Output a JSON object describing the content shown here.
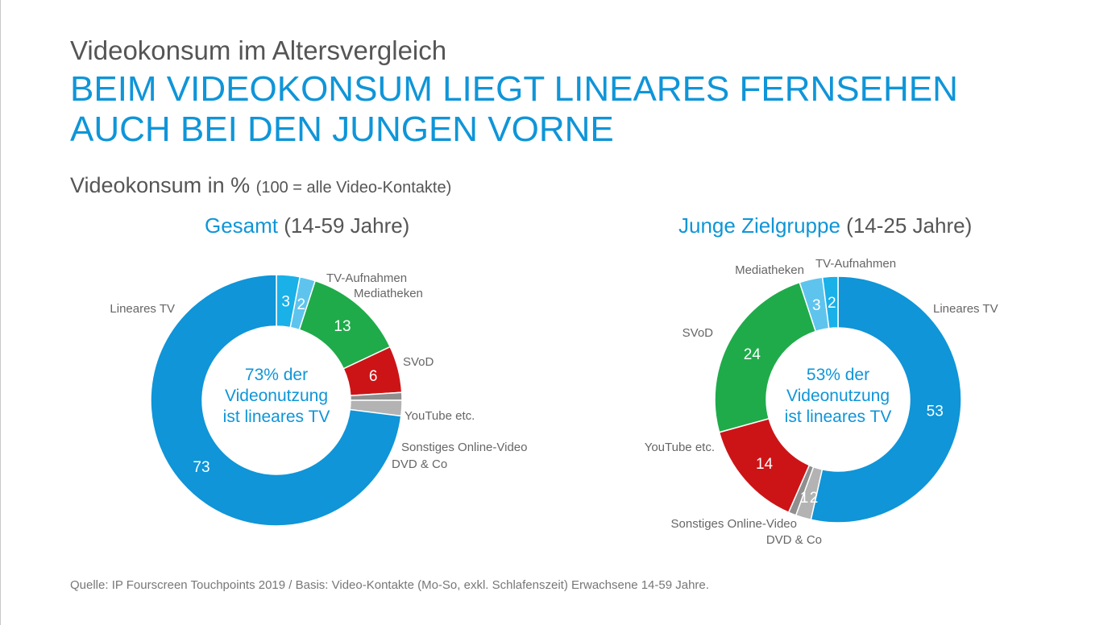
{
  "kicker": "Videokonsum im Altersvergleich",
  "headline": {
    "line1": "BEIM VIDEOKONSUM LIEGT LINEARES FERNSEHEN",
    "line2": "AUCH BEI DEN JUNGEN VORNE"
  },
  "subtitle": {
    "main": "Videokonsum in %",
    "note": "(100 = alle Video-Kontakte)"
  },
  "footer": "Quelle: IP Fourscreen Touchpoints 2019 / Basis: Video-Kontakte (Mo-So, exkl. Schlafenszeit) Erwachsene 14-59 Jahre.",
  "colors": {
    "accent": "#0f95d8",
    "lineares_tv": "#0f95d8",
    "tv_aufnahmen": "#1ab0e8",
    "mediatheken": "#5ec4ee",
    "svod": "#1fab4a",
    "youtube": "#cc1417",
    "sonstiges": "#8f8f8f",
    "dvd": "#b3b3b3"
  },
  "chart_data": [
    {
      "type": "pie",
      "variant": "donut",
      "title_accent": "Gesamt",
      "title_rest": "(14-59 Jahre)",
      "center_text": [
        "73% der",
        "Videonutzung",
        "ist lineares TV"
      ],
      "slices": [
        {
          "label": "TV-Aufnahmen",
          "value": 3,
          "color": "#1ab0e8"
        },
        {
          "label": "Mediatheken",
          "value": 2,
          "color": "#5ec4ee"
        },
        {
          "label": "SVoD",
          "value": 13,
          "color": "#1fab4a"
        },
        {
          "label": "YouTube etc.",
          "value": 6,
          "color": "#cc1417"
        },
        {
          "label": "Sonstiges Online-Video",
          "value": 1,
          "color": "#8f8f8f"
        },
        {
          "label": "DVD & Co",
          "value": 2,
          "color": "#b3b3b3"
        },
        {
          "label": "Lineares TV",
          "value": 73,
          "color": "#0f95d8"
        }
      ]
    },
    {
      "type": "pie",
      "variant": "donut",
      "title_accent": "Junge Zielgruppe",
      "title_rest": "(14-25 Jahre)",
      "center_text": [
        "53% der",
        "Videonutzung",
        "ist lineares TV"
      ],
      "slices": [
        {
          "label": "Lineares TV",
          "value": 53,
          "color": "#0f95d8"
        },
        {
          "label": "DVD & Co",
          "value": 2,
          "color": "#b3b3b3"
        },
        {
          "label": "Sonstiges Online-Video",
          "value": 1,
          "color": "#8f8f8f"
        },
        {
          "label": "YouTube etc.",
          "value": 14,
          "color": "#cc1417"
        },
        {
          "label": "SVoD",
          "value": 24,
          "color": "#1fab4a"
        },
        {
          "label": "Mediatheken",
          "value": 3,
          "color": "#5ec4ee"
        },
        {
          "label": "TV-Aufnahmen",
          "value": 2,
          "color": "#1ab0e8"
        }
      ]
    }
  ]
}
